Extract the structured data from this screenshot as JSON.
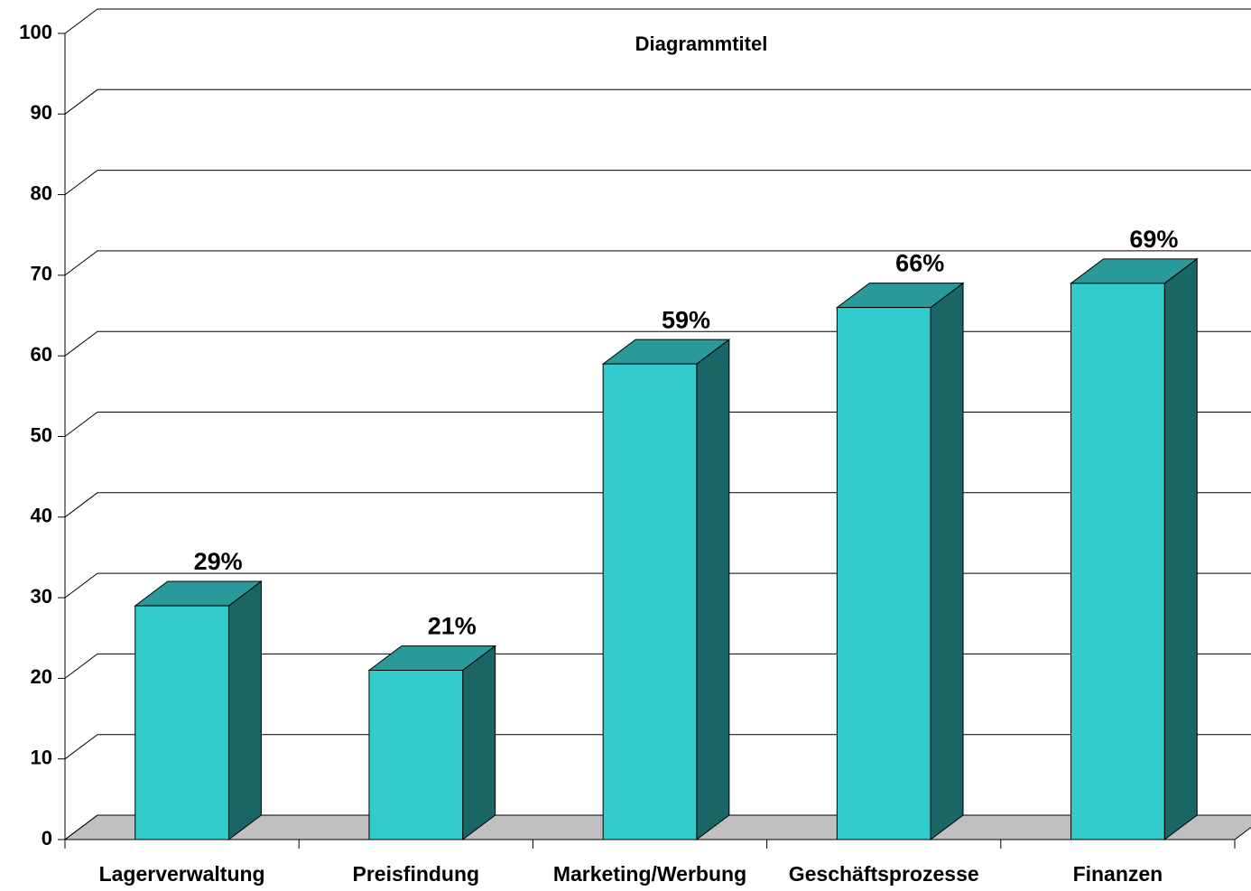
{
  "chart_data": {
    "type": "bar",
    "title": "Diagrammtitel",
    "categories": [
      "Lagerverwaltung",
      "Preisfindung",
      "Marketing/Werbung",
      "Geschäftsprozesse",
      "Finanzen"
    ],
    "values": [
      29,
      21,
      59,
      66,
      69
    ],
    "value_labels": [
      "29%",
      "21%",
      "59%",
      "66%",
      "69%"
    ],
    "color": "#33cccc",
    "ylim": [
      0,
      100
    ],
    "yticks": [
      0,
      10,
      20,
      30,
      40,
      50,
      60,
      70,
      80,
      90,
      100
    ],
    "grid": true
  }
}
